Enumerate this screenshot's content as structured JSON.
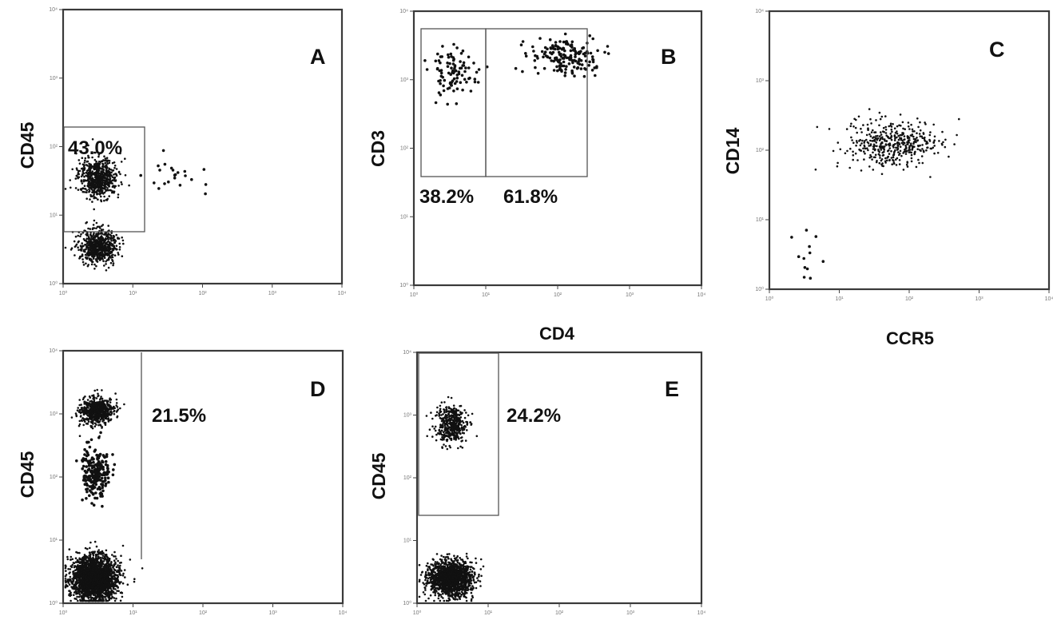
{
  "chart_data": [
    {
      "type": "scatter",
      "panel": "A",
      "ylabel": "CD45",
      "xlabel": "",
      "scale": "log",
      "xlim": [
        1,
        10000
      ],
      "ylim": [
        1,
        10000
      ],
      "tick_labels": [
        "10⁰",
        "10¹",
        "10²",
        "10³",
        "10⁴"
      ],
      "gates": [
        {
          "label": "43.0%",
          "x_range": [
            1,
            10
          ],
          "y_range": [
            10,
            280
          ]
        }
      ],
      "populations": [
        {
          "name": "",
          "x_center": 3.2,
          "y_center": 35,
          "count": 650
        },
        {
          "name": "",
          "x_center": 3.2,
          "y_center": 3.5,
          "count": 650
        },
        {
          "name": "",
          "x_center": 35,
          "y_center": 40,
          "count": 22
        }
      ]
    },
    {
      "type": "scatter",
      "panel": "B",
      "ylabel": "CD3",
      "xlabel": "CD4",
      "scale": "log",
      "xlim": [
        1,
        10000
      ],
      "ylim": [
        1,
        10000
      ],
      "tick_labels": [
        "10⁰",
        "10¹",
        "10²",
        "10³",
        "10⁴"
      ],
      "gates": [
        {
          "label": "38.2%",
          "x_range": [
            1,
            10
          ],
          "y_range": [
            120,
            6500
          ]
        },
        {
          "label": "61.8%",
          "x_range": [
            10,
            1400
          ],
          "y_range": [
            120,
            6500
          ]
        }
      ],
      "populations": [
        {
          "name": "",
          "x_center": 3.5,
          "y_center": 1300,
          "count": 95
        },
        {
          "name": "",
          "x_center": 120,
          "y_center": 2200,
          "count": 170
        }
      ]
    },
    {
      "type": "scatter",
      "panel": "C",
      "ylabel": "CD14",
      "xlabel": "CCR5",
      "scale": "log",
      "xlim": [
        1,
        10000
      ],
      "ylim": [
        1,
        10000
      ],
      "tick_labels": [
        "10⁰",
        "10¹",
        "10²",
        "10³",
        "10⁴"
      ],
      "gates": [],
      "populations": [
        {
          "name": "",
          "x_center": 60,
          "y_center": 120,
          "count": 430
        },
        {
          "name": "",
          "x_center": 3.5,
          "y_center": 3,
          "count": 12
        }
      ]
    },
    {
      "type": "scatter",
      "panel": "D",
      "ylabel": "CD45",
      "xlabel": "",
      "scale": "log",
      "xlim": [
        1,
        10000
      ],
      "ylim": [
        1,
        10000
      ],
      "tick_labels": [
        "10⁰",
        "10¹",
        "10²",
        "10³",
        "10⁴"
      ],
      "gates": [
        {
          "label": "21.5%",
          "x_range": [
            1,
            10
          ],
          "y_range": [
            10,
            10000
          ]
        }
      ],
      "populations": [
        {
          "name": "",
          "x_center": 3.0,
          "y_center": 1100,
          "count": 600
        },
        {
          "name": "",
          "x_center": 3.0,
          "y_center": 120,
          "count": 230
        },
        {
          "name": "",
          "x_center": 2.8,
          "y_center": 2.5,
          "count": 2300
        }
      ]
    },
    {
      "type": "scatter",
      "panel": "E",
      "ylabel": "CD45",
      "xlabel": "",
      "scale": "log",
      "xlim": [
        1,
        10000
      ],
      "ylim": [
        1,
        10000
      ],
      "tick_labels": [
        "10⁰",
        "10¹",
        "10²",
        "10³",
        "10⁴"
      ],
      "gates": [
        {
          "label": "24.2%",
          "x_range": [
            1,
            10
          ],
          "y_range": [
            35,
            10000
          ]
        }
      ],
      "populations": [
        {
          "name": "",
          "x_center": 3.0,
          "y_center": 700,
          "count": 420
        },
        {
          "name": "",
          "x_center": 3.0,
          "y_center": 2.5,
          "count": 1500
        }
      ]
    }
  ]
}
